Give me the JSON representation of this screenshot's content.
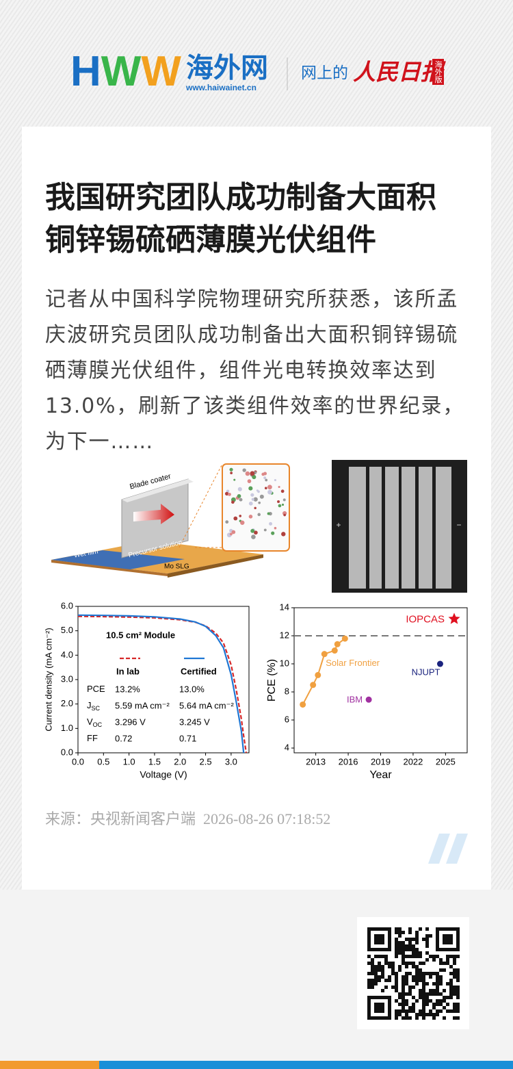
{
  "header": {
    "logo_letters": [
      "H",
      "W",
      "W"
    ],
    "site_name": "海外网",
    "site_url": "www.haiwainet.cn",
    "tagline": "网上的",
    "paper_name": "人民日报",
    "edition": "海外版"
  },
  "article": {
    "title": "我国研究团队成功制备大面积铜锌锡硫硒薄膜光伏组件",
    "summary": "记者从中国科学院物理研究所获悉，该所孟庆波研究员团队成功制备出大面积铜锌锡硫硒薄膜光伏组件，组件光电转换效率达到13.0%，刷新了该类组件效率的世界纪录，为下一……",
    "source": "来源：央视新闻客户端",
    "time": "2026-08-26 07:18:52"
  },
  "figure": {
    "panel_a_labels": [
      "Blade coater",
      "Wet film",
      "Precursor solution",
      "Mo SLG"
    ],
    "panel_b_labels": [
      "+",
      "−"
    ]
  },
  "chart_data": [
    {
      "type": "line",
      "xlabel": "Voltage (V)",
      "ylabel": "Current density (mA cm⁻²)",
      "xlim": [
        0,
        3.35
      ],
      "ylim": [
        0,
        6
      ],
      "xticks": [
        {
          "value": 0,
          "label": "0.0"
        },
        0.5,
        {
          "value": 1,
          "label": "1.0"
        },
        1.5,
        {
          "value": 2,
          "label": "2.0"
        },
        2.5,
        {
          "value": 3,
          "label": "3.0"
        }
      ],
      "yticks": [
        {
          "value": 0,
          "label": "0.0"
        },
        {
          "value": 1,
          "label": "1.0"
        },
        {
          "value": 2,
          "label": "2.0"
        },
        {
          "value": 3,
          "label": "3.0"
        },
        {
          "value": 4,
          "label": "4.0"
        },
        {
          "value": 5,
          "label": "5.0"
        },
        {
          "value": 6,
          "label": "6.0"
        }
      ],
      "x": [
        0,
        0.5,
        1,
        1.5,
        2,
        2.3,
        2.5,
        2.7,
        2.85,
        3.0,
        3.1,
        3.2,
        3.245,
        3.296
      ],
      "series": [
        {
          "name": "In lab",
          "color": "#d62728",
          "dash": true,
          "values": [
            5.59,
            5.58,
            5.56,
            5.53,
            5.45,
            5.35,
            5.2,
            4.9,
            4.5,
            3.6,
            2.6,
            1.4,
            0.7,
            0
          ]
        },
        {
          "name": "Certified",
          "color": "#1f77d4",
          "dash": false,
          "values": [
            5.64,
            5.63,
            5.61,
            5.57,
            5.48,
            5.36,
            5.18,
            4.8,
            4.3,
            3.2,
            2.1,
            0.9,
            0,
            null
          ]
        }
      ],
      "legend_title": "10.5 cm² Module",
      "table": [
        {
          "label": "PCE",
          "values": [
            "13.2%",
            "13.0%"
          ]
        },
        {
          "label": "J",
          "sub": "SC",
          "values": [
            "5.59 mA cm⁻²",
            "5.64 mA cm⁻²"
          ]
        },
        {
          "label": "V",
          "sub": "OC",
          "values": [
            "3.296 V",
            "3.245 V"
          ]
        },
        {
          "label": "FF",
          "values": [
            "0.72",
            "0.71"
          ]
        }
      ]
    },
    {
      "type": "scatter",
      "xlabel": "Year",
      "ylabel": "PCE (%)",
      "xlim": [
        2011,
        2027
      ],
      "ylim": [
        3.66,
        14
      ],
      "xticks": [
        2013,
        2016,
        2019,
        2022,
        2025
      ],
      "yticks": [
        4,
        6,
        8,
        10,
        12,
        14
      ],
      "reference_line": 12,
      "series": [
        {
          "name": "Solar Frontier",
          "color": "#f0a040",
          "marker": "circle",
          "connect": true,
          "x": [
            2011.8,
            2012.75,
            2013.2,
            2013.8,
            2014.75,
            2015.0,
            2015.7
          ],
          "values": [
            7.1,
            8.5,
            9.2,
            10.7,
            10.95,
            11.4,
            11.8
          ]
        },
        {
          "name": "IBM",
          "color": "#a030a0",
          "marker": "circle",
          "x": [
            2017.9
          ],
          "values": [
            7.45
          ]
        },
        {
          "name": "NJUPT",
          "color": "#1a237e",
          "marker": "circle",
          "x": [
            2024.5
          ],
          "values": [
            10.0
          ]
        },
        {
          "name": "IOPCAS",
          "color": "#e01020",
          "marker": "star",
          "x": [
            2025.8
          ],
          "values": [
            13.2
          ]
        }
      ]
    }
  ]
}
